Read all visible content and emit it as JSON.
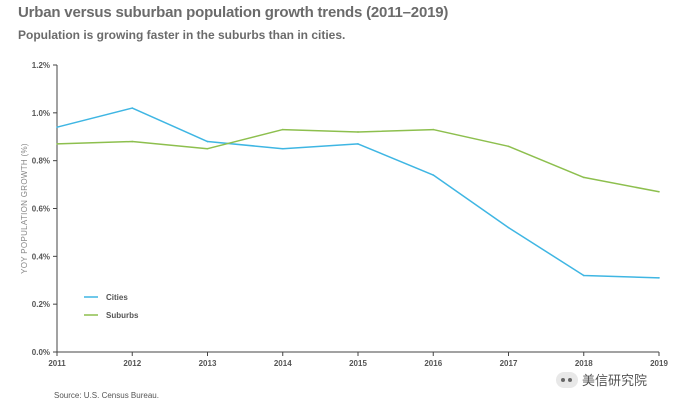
{
  "header": {
    "title": "Urban versus suburban population growth trends (2011–2019)",
    "subtitle": "Population is growing faster in the suburbs than in cities."
  },
  "footer": {
    "source": "Source: U.S. Census Bureau."
  },
  "watermark": {
    "text": "美信研究院",
    "icon": "wechat-icon"
  },
  "chart_data": {
    "type": "line",
    "title": "Urban versus suburban population growth trends (2011–2019)",
    "subtitle": "Population is growing faster in the suburbs than in cities.",
    "xlabel": "",
    "ylabel": "YOY POPULATION GROWTH (%)",
    "categories": [
      "2011",
      "2012",
      "2013",
      "2014",
      "2015",
      "2016",
      "2017",
      "2018",
      "2019"
    ],
    "ylim": [
      0,
      1.2
    ],
    "yticks": [
      0,
      0.2,
      0.4,
      0.6,
      0.8,
      1.0,
      1.2
    ],
    "ytick_labels": [
      "0.0%",
      "0.2%",
      "0.4%",
      "0.6%",
      "0.8%",
      "1.0%",
      "1.2%"
    ],
    "grid": false,
    "legend_position": "bottom-left",
    "series": [
      {
        "name": "Cities",
        "color": "#3fb6e3",
        "values": [
          0.94,
          1.02,
          0.88,
          0.85,
          0.87,
          0.74,
          0.52,
          0.32,
          0.31
        ]
      },
      {
        "name": "Suburbs",
        "color": "#8dbf4e",
        "values": [
          0.87,
          0.88,
          0.85,
          0.93,
          0.92,
          0.93,
          0.86,
          0.73,
          0.67
        ]
      }
    ]
  }
}
